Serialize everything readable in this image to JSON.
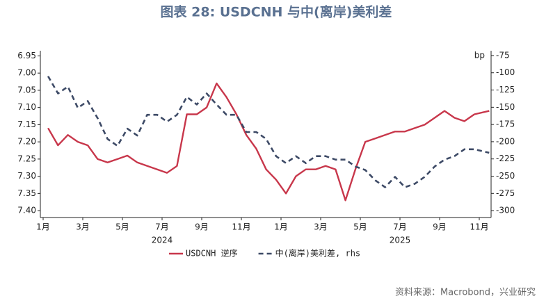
{
  "chart_data": {
    "type": "line",
    "title": "图表 28: USDCNH 与中(离岸)美利差",
    "source": "资料来源：Macrobond，兴业研究",
    "y2_unit": "bp",
    "x": [
      "2024-01",
      "2024-01",
      "2024-02",
      "2024-02",
      "2024-03",
      "2024-03",
      "2024-04",
      "2024-04",
      "2024-05",
      "2024-05",
      "2024-06",
      "2024-06",
      "2024-07",
      "2024-07",
      "2024-08",
      "2024-08",
      "2024-09",
      "2024-09",
      "2024-10",
      "2024-10",
      "2024-11",
      "2024-11",
      "2024-12",
      "2024-12",
      "2025-01",
      "2025-01",
      "2025-02",
      "2025-02",
      "2025-03",
      "2025-03",
      "2025-04",
      "2025-04",
      "2025-05",
      "2025-05",
      "2025-06",
      "2025-06",
      "2025-07",
      "2025-07",
      "2025-08",
      "2025-08",
      "2025-09",
      "2025-09",
      "2025-10",
      "2025-10",
      "2025-11"
    ],
    "xticks": [
      {
        "value": "2024-01",
        "label": "1月"
      },
      {
        "value": "2024-03",
        "label": "3月"
      },
      {
        "value": "2024-05",
        "label": "5月"
      },
      {
        "value": "2024-07",
        "label": "7月"
      },
      {
        "value": "2024-09",
        "label": "9月"
      },
      {
        "value": "2024-11",
        "label": "11月"
      },
      {
        "value": "2025-01",
        "label": "1月"
      },
      {
        "value": "2025-03",
        "label": "3月"
      },
      {
        "value": "2025-05",
        "label": "5月"
      },
      {
        "value": "2025-07",
        "label": "7月"
      },
      {
        "value": "2025-09",
        "label": "9月"
      },
      {
        "value": "2025-11",
        "label": "11月"
      }
    ],
    "years": [
      "2024",
      "2025"
    ],
    "series": [
      {
        "name": "USDCNH 逆序",
        "color": "#c8374b",
        "dash": false,
        "values": [
          7.16,
          7.21,
          7.18,
          7.2,
          7.21,
          7.25,
          7.26,
          7.25,
          7.24,
          7.26,
          7.27,
          7.28,
          7.29,
          7.27,
          7.12,
          7.12,
          7.1,
          7.03,
          7.07,
          7.12,
          7.18,
          7.22,
          7.28,
          7.31,
          7.35,
          7.3,
          7.28,
          7.28,
          7.27,
          7.28,
          7.37,
          7.28,
          7.2,
          7.19,
          7.18,
          7.17,
          7.17,
          7.16,
          7.15,
          7.13,
          7.11,
          7.13,
          7.14,
          7.12,
          7.11
        ]
      },
      {
        "name": "中(离岸)美利差, rhs",
        "color": "#3d4a66",
        "dash": true,
        "axis": "y2",
        "values": [
          -105,
          -130,
          -120,
          -151,
          -141,
          -166,
          -196,
          -206,
          -181,
          -191,
          -161,
          -161,
          -171,
          -161,
          -135,
          -146,
          -130,
          -146,
          -161,
          -161,
          -186,
          -186,
          -196,
          -221,
          -231,
          -221,
          -231,
          -221,
          -221,
          -226,
          -226,
          -236,
          -241,
          -256,
          -266,
          -251,
          -266,
          -261,
          -251,
          -236,
          -226,
          -221,
          -211,
          -211,
          -216
        ]
      }
    ],
    "ylim": [
      7.42,
      6.935
    ],
    "y_inverted": true,
    "yticks": [
      6.95,
      {
        "value": 7,
        "label": "7.00"
      },
      7.05,
      {
        "value": 7.1,
        "label": "7.10"
      },
      7.15,
      {
        "value": 7.2,
        "label": "7.20"
      },
      7.25,
      {
        "value": 7.3,
        "label": "7.30"
      },
      7.35,
      {
        "value": 7.4,
        "label": "7.40"
      }
    ],
    "y2lim": [
      -310,
      -68
    ],
    "y2ticks": [
      -75,
      -100,
      -125,
      -150,
      -175,
      -200,
      -225,
      -250,
      -275,
      -300
    ]
  }
}
